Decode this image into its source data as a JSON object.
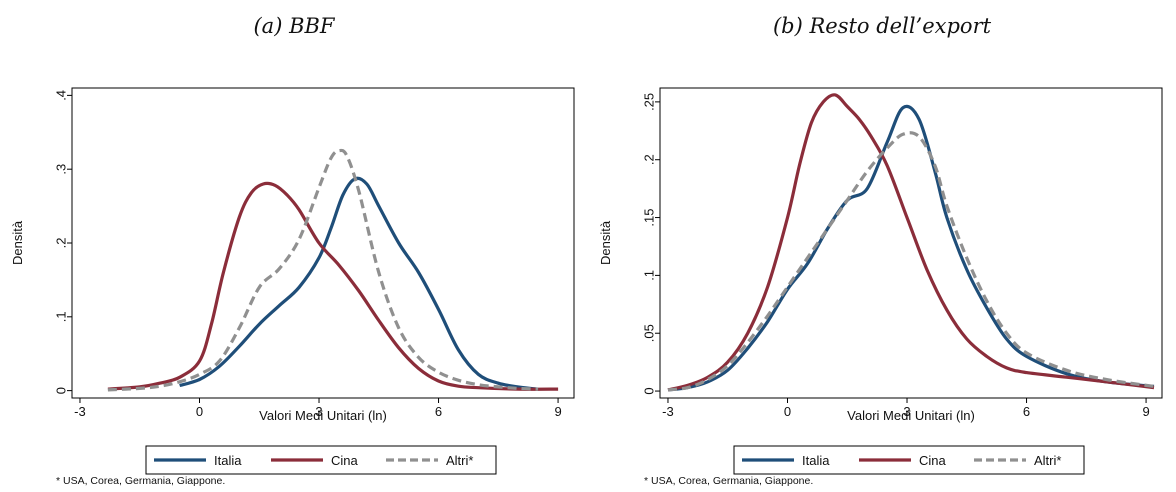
{
  "colors": {
    "italia": "#1f4e79",
    "cina": "#8b2d3a",
    "altri": "#909090",
    "plotbg": "#ffffff",
    "outer": "#ffffff"
  },
  "footnote": "* USA, Corea, Germania, Giappone.",
  "chart_data": [
    {
      "type": "line",
      "title": "(a)   BBF",
      "xlabel": "Valori Medi Unitari (ln)",
      "ylabel": "Densità",
      "xlim": [
        -3.2,
        9.4
      ],
      "ylim": [
        -0.01,
        0.41
      ],
      "xticks": [
        -3,
        0,
        3,
        6,
        9
      ],
      "xtick_labels": [
        "-3",
        "0",
        "3",
        "6",
        "9"
      ],
      "yticks": [
        0,
        0.1,
        0.2,
        0.3,
        0.4
      ],
      "ytick_labels": [
        "0",
        ".1",
        ".2",
        ".3",
        ".4"
      ],
      "grid": false,
      "legend": "bottom",
      "series": [
        {
          "name": "Italia",
          "key": "italia",
          "dash": false,
          "x": [
            -0.5,
            0,
            0.5,
            1,
            1.5,
            2,
            2.5,
            3,
            3.3,
            3.6,
            3.9,
            4.2,
            4.5,
            5,
            5.5,
            6,
            6.5,
            7,
            7.5,
            8,
            8.5
          ],
          "y": [
            0.007,
            0.015,
            0.033,
            0.06,
            0.09,
            0.115,
            0.14,
            0.18,
            0.22,
            0.265,
            0.287,
            0.28,
            0.25,
            0.2,
            0.16,
            0.11,
            0.055,
            0.022,
            0.01,
            0.005,
            0.002
          ]
        },
        {
          "name": "Cina",
          "key": "cina",
          "dash": false,
          "x": [
            -2.3,
            -1.5,
            -1,
            -0.5,
            0,
            0.3,
            0.6,
            1,
            1.3,
            1.6,
            1.9,
            2.2,
            2.5,
            3,
            3.5,
            4,
            4.5,
            5,
            5.5,
            6,
            6.5,
            7,
            8,
            9
          ],
          "y": [
            0.002,
            0.005,
            0.01,
            0.018,
            0.04,
            0.09,
            0.16,
            0.235,
            0.268,
            0.28,
            0.278,
            0.265,
            0.245,
            0.2,
            0.17,
            0.135,
            0.095,
            0.058,
            0.03,
            0.013,
            0.006,
            0.004,
            0.002,
            0.002
          ]
        },
        {
          "name": "Altri*",
          "key": "altri",
          "dash": true,
          "x": [
            -2.3,
            -1.5,
            -1,
            -0.5,
            0,
            0.5,
            1,
            1.5,
            2,
            2.5,
            3,
            3.3,
            3.5,
            3.7,
            4,
            4.5,
            5,
            5.5,
            6,
            6.5,
            7,
            7.5,
            8,
            8.5
          ],
          "y": [
            0.001,
            0.003,
            0.006,
            0.012,
            0.022,
            0.04,
            0.085,
            0.14,
            0.165,
            0.205,
            0.275,
            0.315,
            0.325,
            0.318,
            0.27,
            0.16,
            0.085,
            0.045,
            0.025,
            0.014,
            0.008,
            0.005,
            0.003,
            0.002
          ]
        }
      ]
    },
    {
      "type": "line",
      "title": "(b) Resto dell’export",
      "xlabel": "Valori Medi Unitari (ln)",
      "ylabel": "Densità",
      "xlim": [
        -3.2,
        9.4
      ],
      "ylim": [
        -0.006,
        0.262
      ],
      "xticks": [
        -3,
        0,
        3,
        6,
        9
      ],
      "xtick_labels": [
        "-3",
        "0",
        "3",
        "6",
        "9"
      ],
      "yticks": [
        0,
        0.05,
        0.1,
        0.15,
        0.2,
        0.25
      ],
      "ytick_labels": [
        "0",
        ".05",
        ".1",
        ".15",
        ".2",
        ".25"
      ],
      "grid": false,
      "legend": "bottom",
      "series": [
        {
          "name": "Italia",
          "key": "italia",
          "dash": false,
          "x": [
            -3,
            -2.5,
            -2,
            -1.5,
            -1,
            -0.5,
            0,
            0.5,
            1,
            1.5,
            2,
            2.5,
            2.9,
            3.3,
            3.7,
            4,
            4.5,
            5,
            5.5,
            6,
            7,
            8,
            9.2
          ],
          "y": [
            0.001,
            0.003,
            0.008,
            0.018,
            0.037,
            0.06,
            0.088,
            0.11,
            0.14,
            0.165,
            0.175,
            0.215,
            0.245,
            0.235,
            0.19,
            0.15,
            0.105,
            0.072,
            0.045,
            0.03,
            0.015,
            0.008,
            0.004
          ]
        },
        {
          "name": "Cina",
          "key": "cina",
          "dash": false,
          "x": [
            -3,
            -2.5,
            -2,
            -1.5,
            -1,
            -0.5,
            0,
            0.3,
            0.6,
            0.9,
            1.2,
            1.5,
            1.8,
            2.1,
            2.5,
            3,
            3.5,
            4,
            4.5,
            5,
            5.5,
            6,
            7,
            8,
            9.2
          ],
          "y": [
            0.001,
            0.005,
            0.012,
            0.025,
            0.05,
            0.09,
            0.15,
            0.195,
            0.232,
            0.25,
            0.256,
            0.246,
            0.235,
            0.22,
            0.195,
            0.15,
            0.105,
            0.07,
            0.045,
            0.03,
            0.02,
            0.016,
            0.012,
            0.008,
            0.003
          ]
        },
        {
          "name": "Altri*",
          "key": "altri",
          "dash": true,
          "x": [
            -3,
            -2.5,
            -2,
            -1.5,
            -1,
            -0.5,
            0,
            0.5,
            1,
            1.5,
            2,
            2.5,
            2.9,
            3.3,
            3.7,
            4,
            4.5,
            5,
            5.5,
            6,
            7,
            8,
            9.2
          ],
          "y": [
            0.001,
            0.003,
            0.01,
            0.022,
            0.042,
            0.065,
            0.09,
            0.115,
            0.14,
            0.165,
            0.19,
            0.21,
            0.222,
            0.22,
            0.195,
            0.16,
            0.115,
            0.078,
            0.05,
            0.033,
            0.018,
            0.01,
            0.004
          ]
        }
      ]
    }
  ]
}
